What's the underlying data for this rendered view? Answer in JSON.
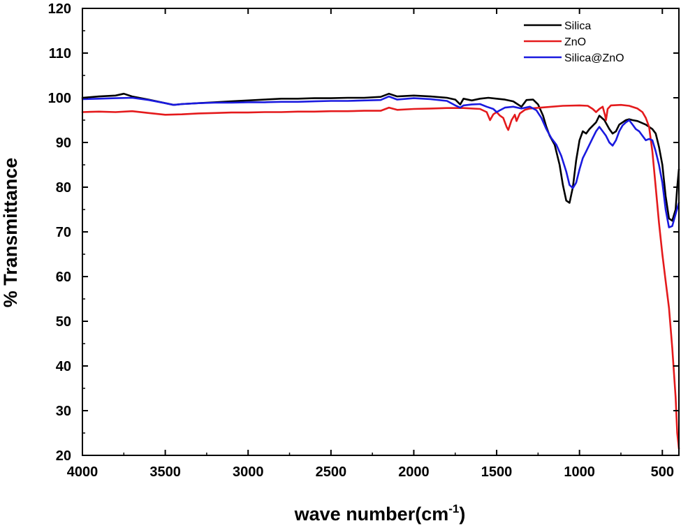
{
  "chart_data": {
    "type": "line",
    "title": "",
    "xlabel": "wave number(cm",
    "xlabel_sup": "-1",
    "xlabel_close": ")",
    "ylabel": "% Transmittance",
    "xlim": [
      4000,
      400
    ],
    "ylim": [
      20,
      120
    ],
    "x_reversed": true,
    "xticks": [
      4000,
      3500,
      3000,
      2500,
      2000,
      1500,
      1000,
      500
    ],
    "yticks": [
      20,
      30,
      40,
      50,
      60,
      70,
      80,
      90,
      100,
      110,
      120
    ],
    "legend_position": "top-right",
    "grid": false,
    "series": [
      {
        "name": "Silica",
        "color": "#000000",
        "points": [
          [
            4000,
            100.0
          ],
          [
            3900,
            100.3
          ],
          [
            3800,
            100.5
          ],
          [
            3750,
            100.9
          ],
          [
            3700,
            100.3
          ],
          [
            3600,
            99.6
          ],
          [
            3500,
            98.8
          ],
          [
            3450,
            98.4
          ],
          [
            3400,
            98.6
          ],
          [
            3300,
            98.8
          ],
          [
            3200,
            99.0
          ],
          [
            3100,
            99.2
          ],
          [
            3000,
            99.4
          ],
          [
            2900,
            99.6
          ],
          [
            2800,
            99.8
          ],
          [
            2700,
            99.8
          ],
          [
            2600,
            99.9
          ],
          [
            2500,
            99.9
          ],
          [
            2400,
            100.0
          ],
          [
            2300,
            100.0
          ],
          [
            2200,
            100.2
          ],
          [
            2150,
            100.9
          ],
          [
            2100,
            100.3
          ],
          [
            2000,
            100.5
          ],
          [
            1900,
            100.3
          ],
          [
            1800,
            100.0
          ],
          [
            1750,
            99.6
          ],
          [
            1720,
            98.5
          ],
          [
            1700,
            99.8
          ],
          [
            1650,
            99.4
          ],
          [
            1600,
            99.8
          ],
          [
            1550,
            100.0
          ],
          [
            1500,
            99.8
          ],
          [
            1450,
            99.6
          ],
          [
            1400,
            99.2
          ],
          [
            1350,
            98.0
          ],
          [
            1320,
            99.5
          ],
          [
            1280,
            99.6
          ],
          [
            1250,
            98.5
          ],
          [
            1220,
            96.0
          ],
          [
            1200,
            93.5
          ],
          [
            1180,
            91.5
          ],
          [
            1150,
            89.5
          ],
          [
            1120,
            85.0
          ],
          [
            1100,
            80.5
          ],
          [
            1080,
            77.0
          ],
          [
            1060,
            76.5
          ],
          [
            1040,
            80.0
          ],
          [
            1020,
            86.0
          ],
          [
            1000,
            90.5
          ],
          [
            980,
            92.5
          ],
          [
            960,
            92.0
          ],
          [
            940,
            93.0
          ],
          [
            900,
            94.5
          ],
          [
            880,
            96.0
          ],
          [
            850,
            95.0
          ],
          [
            820,
            93.0
          ],
          [
            800,
            92.0
          ],
          [
            780,
            92.5
          ],
          [
            760,
            94.0
          ],
          [
            720,
            95.0
          ],
          [
            700,
            95.2
          ],
          [
            680,
            95.0
          ],
          [
            650,
            94.8
          ],
          [
            600,
            94.0
          ],
          [
            560,
            93.0
          ],
          [
            540,
            92.0
          ],
          [
            520,
            89.0
          ],
          [
            500,
            85.0
          ],
          [
            480,
            78.0
          ],
          [
            460,
            73.0
          ],
          [
            440,
            72.5
          ],
          [
            420,
            75.0
          ],
          [
            410,
            80.0
          ],
          [
            400,
            84.0
          ]
        ]
      },
      {
        "name": "ZnO",
        "color": "#e41a1c",
        "points": [
          [
            4000,
            96.8
          ],
          [
            3900,
            96.9
          ],
          [
            3800,
            96.8
          ],
          [
            3700,
            97.0
          ],
          [
            3600,
            96.6
          ],
          [
            3500,
            96.2
          ],
          [
            3400,
            96.3
          ],
          [
            3300,
            96.5
          ],
          [
            3200,
            96.6
          ],
          [
            3100,
            96.7
          ],
          [
            3000,
            96.7
          ],
          [
            2900,
            96.8
          ],
          [
            2800,
            96.8
          ],
          [
            2700,
            96.9
          ],
          [
            2600,
            96.9
          ],
          [
            2500,
            97.0
          ],
          [
            2400,
            97.0
          ],
          [
            2300,
            97.1
          ],
          [
            2200,
            97.1
          ],
          [
            2150,
            97.8
          ],
          [
            2100,
            97.3
          ],
          [
            2000,
            97.5
          ],
          [
            1900,
            97.6
          ],
          [
            1800,
            97.7
          ],
          [
            1700,
            97.7
          ],
          [
            1600,
            97.5
          ],
          [
            1560,
            96.8
          ],
          [
            1540,
            95.0
          ],
          [
            1520,
            96.3
          ],
          [
            1500,
            96.8
          ],
          [
            1480,
            96.0
          ],
          [
            1460,
            95.5
          ],
          [
            1440,
            93.5
          ],
          [
            1430,
            92.8
          ],
          [
            1410,
            95.0
          ],
          [
            1390,
            96.2
          ],
          [
            1380,
            94.8
          ],
          [
            1360,
            96.5
          ],
          [
            1330,
            97.3
          ],
          [
            1300,
            97.6
          ],
          [
            1200,
            97.9
          ],
          [
            1100,
            98.2
          ],
          [
            1000,
            98.3
          ],
          [
            950,
            98.2
          ],
          [
            920,
            97.5
          ],
          [
            900,
            96.8
          ],
          [
            880,
            97.5
          ],
          [
            860,
            98.0
          ],
          [
            845,
            96.0
          ],
          [
            840,
            95.0
          ],
          [
            830,
            97.5
          ],
          [
            810,
            98.3
          ],
          [
            750,
            98.4
          ],
          [
            700,
            98.2
          ],
          [
            650,
            97.6
          ],
          [
            620,
            96.8
          ],
          [
            600,
            95.5
          ],
          [
            580,
            93.5
          ],
          [
            560,
            88.0
          ],
          [
            540,
            80.0
          ],
          [
            520,
            72.0
          ],
          [
            500,
            65.0
          ],
          [
            480,
            59.0
          ],
          [
            460,
            53.0
          ],
          [
            440,
            44.0
          ],
          [
            420,
            33.0
          ],
          [
            410,
            25.0
          ],
          [
            400,
            21.5
          ]
        ]
      },
      {
        "name": "Silica@ZnO",
        "color": "#1a1adf",
        "points": [
          [
            4000,
            99.7
          ],
          [
            3900,
            99.8
          ],
          [
            3800,
            99.9
          ],
          [
            3700,
            100.0
          ],
          [
            3600,
            99.5
          ],
          [
            3500,
            98.8
          ],
          [
            3450,
            98.4
          ],
          [
            3400,
            98.6
          ],
          [
            3300,
            98.8
          ],
          [
            3200,
            98.9
          ],
          [
            3100,
            98.9
          ],
          [
            3000,
            99.0
          ],
          [
            2900,
            99.0
          ],
          [
            2800,
            99.1
          ],
          [
            2700,
            99.1
          ],
          [
            2600,
            99.2
          ],
          [
            2500,
            99.3
          ],
          [
            2400,
            99.3
          ],
          [
            2300,
            99.4
          ],
          [
            2200,
            99.5
          ],
          [
            2150,
            100.3
          ],
          [
            2100,
            99.6
          ],
          [
            2000,
            99.9
          ],
          [
            1900,
            99.7
          ],
          [
            1800,
            99.3
          ],
          [
            1750,
            98.3
          ],
          [
            1720,
            97.8
          ],
          [
            1700,
            98.3
          ],
          [
            1650,
            98.5
          ],
          [
            1600,
            98.6
          ],
          [
            1560,
            98.0
          ],
          [
            1520,
            97.5
          ],
          [
            1500,
            96.8
          ],
          [
            1480,
            97.2
          ],
          [
            1450,
            97.8
          ],
          [
            1400,
            98.0
          ],
          [
            1350,
            97.6
          ],
          [
            1300,
            98.0
          ],
          [
            1260,
            97.2
          ],
          [
            1230,
            95.5
          ],
          [
            1200,
            93.0
          ],
          [
            1170,
            91.0
          ],
          [
            1140,
            89.5
          ],
          [
            1110,
            87.0
          ],
          [
            1080,
            83.5
          ],
          [
            1060,
            80.5
          ],
          [
            1040,
            79.8
          ],
          [
            1020,
            81.0
          ],
          [
            1000,
            84.0
          ],
          [
            980,
            86.5
          ],
          [
            960,
            88.0
          ],
          [
            940,
            89.5
          ],
          [
            920,
            91.0
          ],
          [
            900,
            92.5
          ],
          [
            880,
            93.5
          ],
          [
            860,
            92.5
          ],
          [
            840,
            91.5
          ],
          [
            820,
            90.0
          ],
          [
            800,
            89.3
          ],
          [
            780,
            90.5
          ],
          [
            760,
            92.5
          ],
          [
            740,
            93.8
          ],
          [
            720,
            94.5
          ],
          [
            700,
            95.0
          ],
          [
            680,
            94.0
          ],
          [
            660,
            93.0
          ],
          [
            640,
            92.5
          ],
          [
            620,
            91.5
          ],
          [
            600,
            90.5
          ],
          [
            580,
            90.8
          ],
          [
            560,
            90.5
          ],
          [
            540,
            88.0
          ],
          [
            520,
            85.0
          ],
          [
            500,
            81.0
          ],
          [
            480,
            75.0
          ],
          [
            460,
            71.0
          ],
          [
            440,
            71.3
          ],
          [
            420,
            74.0
          ],
          [
            400,
            76.5
          ]
        ]
      }
    ]
  }
}
